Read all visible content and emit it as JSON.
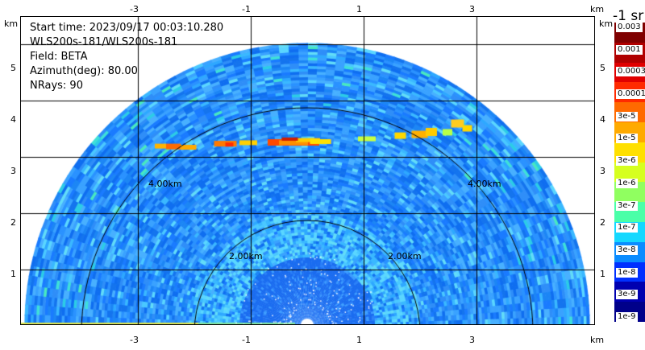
{
  "info": {
    "start_time": "Start time: 2023/09/17 00:03:10.280",
    "instrument": "WLS200s-181/WLS200s-181",
    "field": "Field: BETA",
    "azimuth": "Azimuth(deg): 80.00",
    "nrays": "NRays: 90"
  },
  "axes": {
    "x_ticks": [
      "-3",
      "-1",
      "1",
      "3"
    ],
    "y_ticks": [
      "1",
      "2",
      "3",
      "4",
      "5"
    ],
    "unit": "km"
  },
  "range_rings": {
    "labels": [
      "4.00km",
      "4.00km",
      "2.00km",
      "2.00km"
    ]
  },
  "colorbar": {
    "title": "-1 sr",
    "labels": [
      "0.003",
      "0.001",
      "0.0003",
      "0.0001",
      "3e-5",
      "1e-5",
      "3e-6",
      "1e-6",
      "3e-7",
      "1e-7",
      "3e-8",
      "1e-8",
      "3e-9",
      "1e-9"
    ],
    "colors": [
      "#7f0000",
      "#b00000",
      "#e00000",
      "#ff2a00",
      "#ff6a00",
      "#ffaa00",
      "#ffe000",
      "#d6ff20",
      "#90ff60",
      "#4affa8",
      "#14d8ff",
      "#0a8cff",
      "#0030ff",
      "#0000b0",
      "#00008a"
    ]
  }
}
